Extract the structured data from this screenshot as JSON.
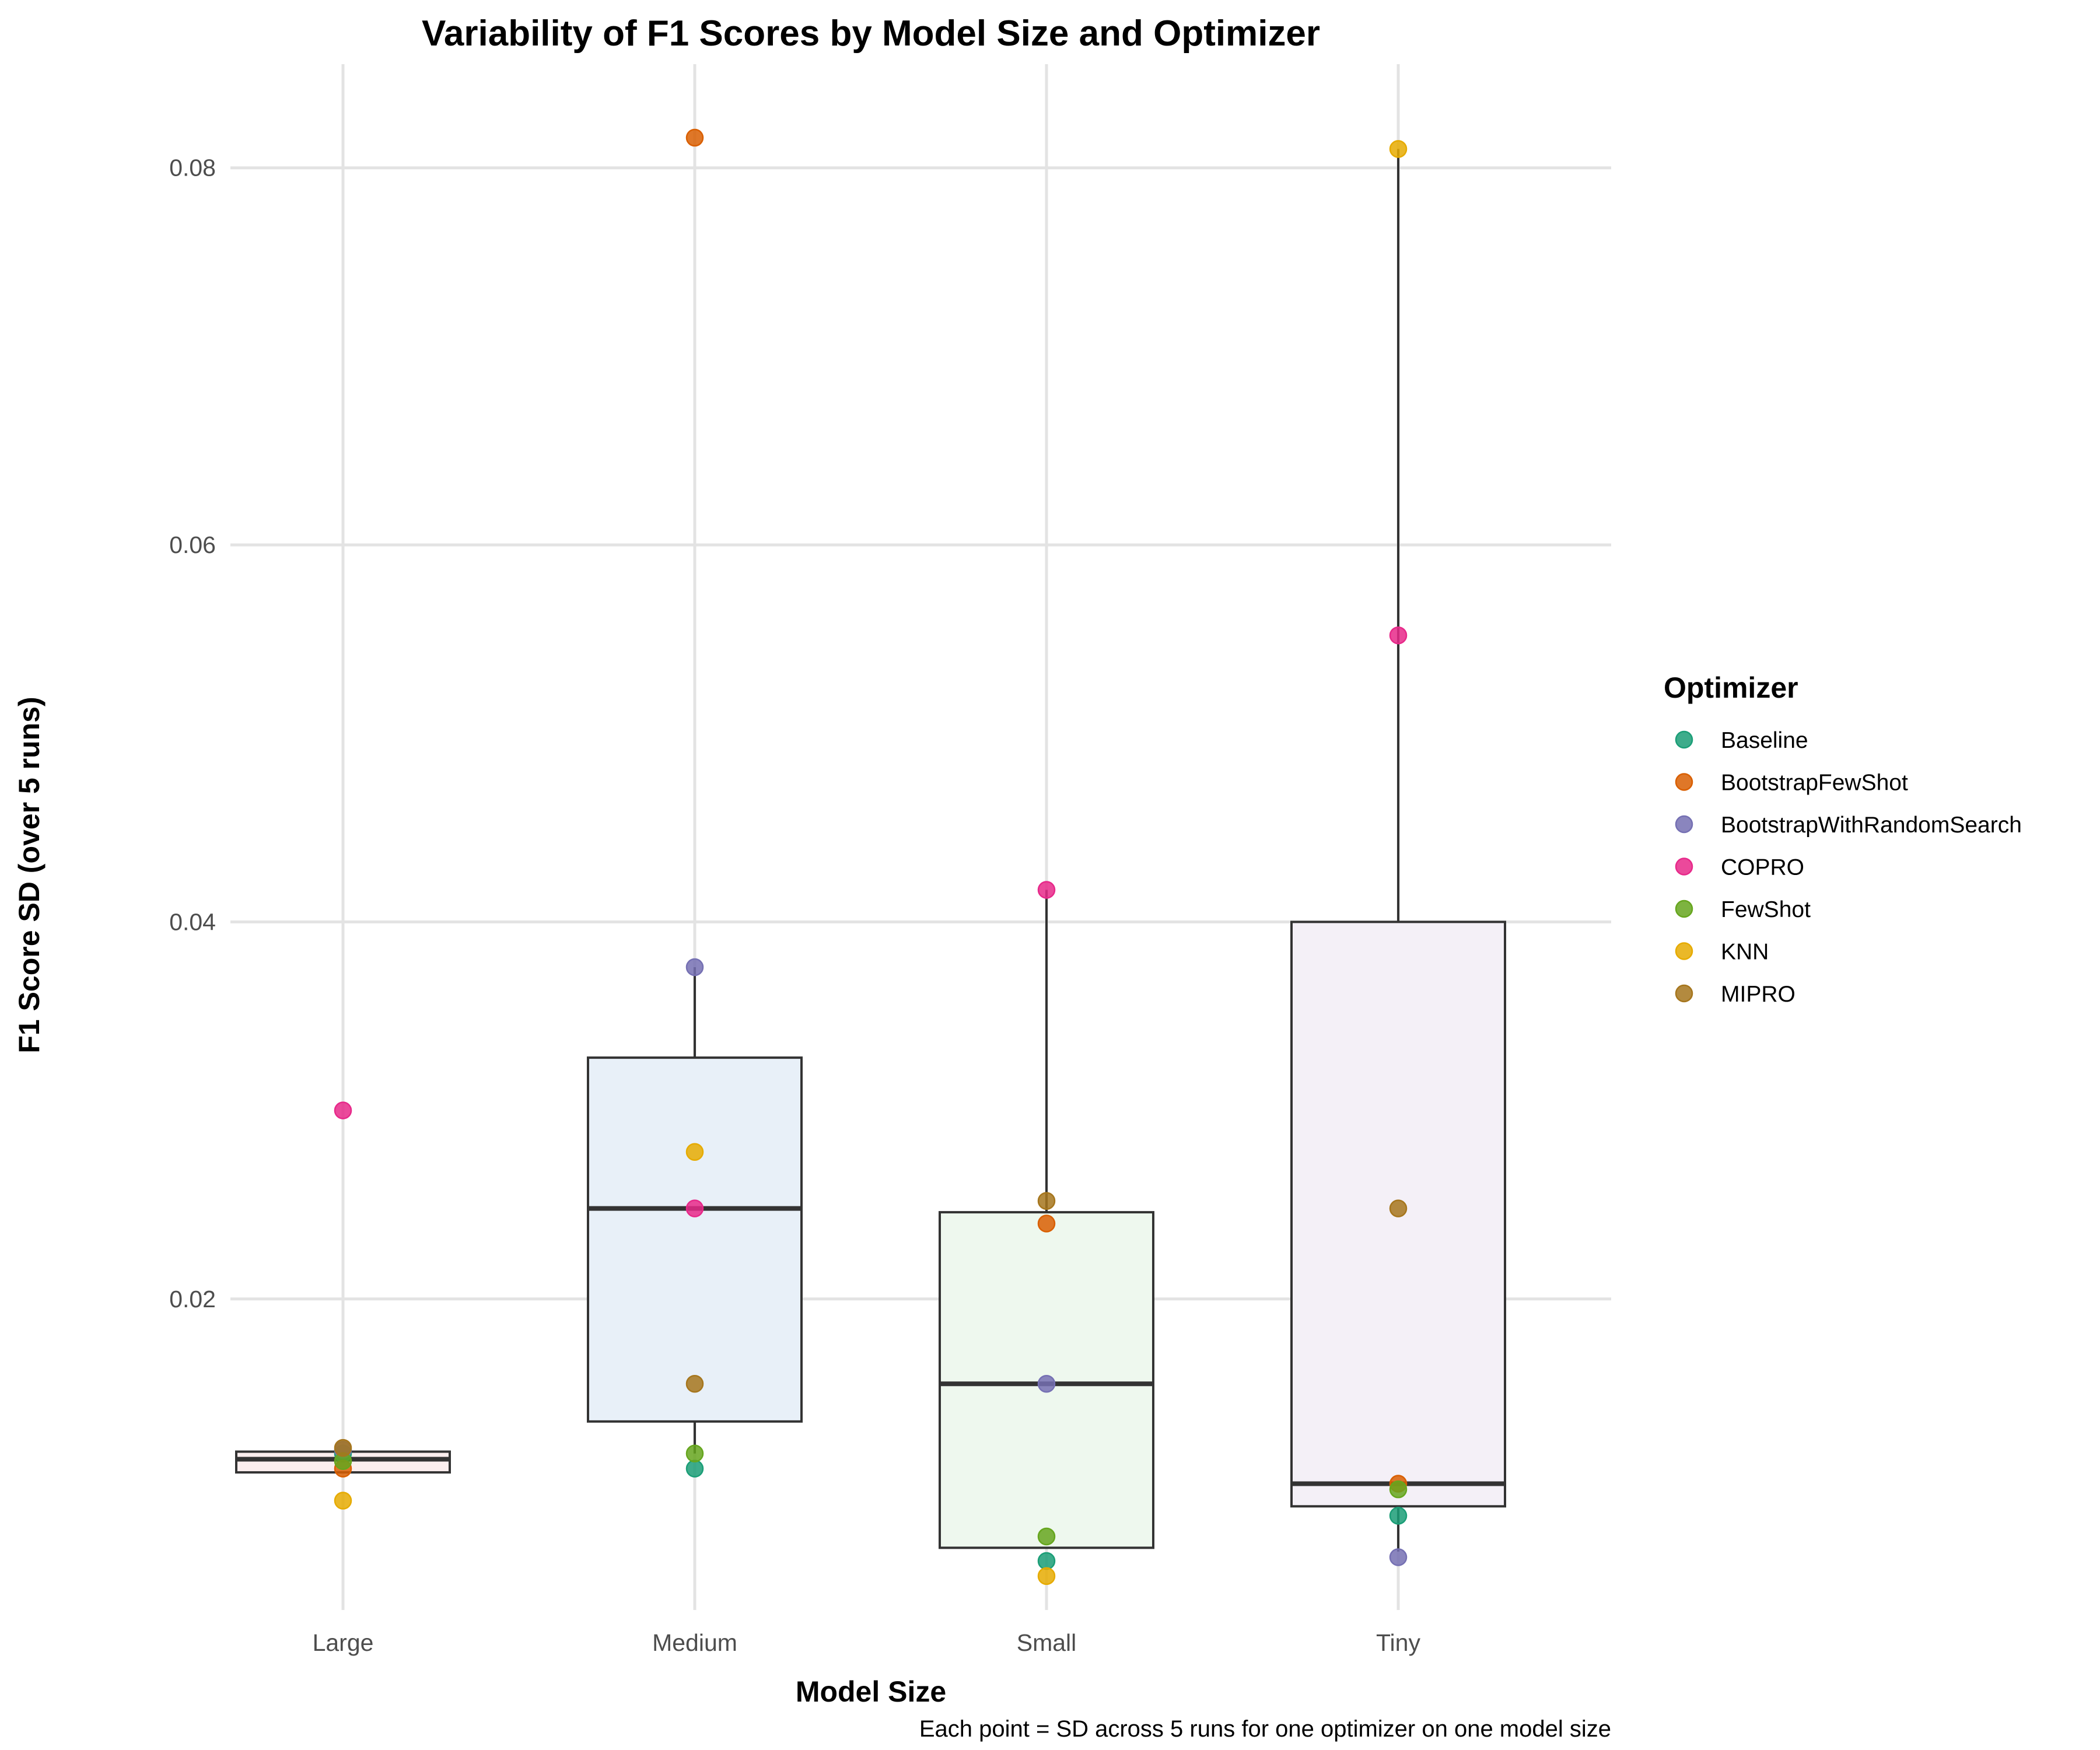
{
  "chart_data": {
    "type": "box",
    "title": "Variability of F1 Scores by Model Size and Optimizer",
    "xlabel": "Model Size",
    "ylabel": "F1 Score SD (over 5 runs)",
    "caption": "Each point = SD across 5 runs for one optimizer on one model size",
    "categories": [
      "Large",
      "Medium",
      "Small",
      "Tiny"
    ],
    "ylim": [
      0.0035,
      0.0855
    ],
    "yticks": [
      0.02,
      0.04,
      0.06,
      0.08
    ],
    "ytick_labels": [
      "0.02",
      "0.04",
      "0.06",
      "0.08"
    ],
    "grid": true,
    "legend": {
      "title": "Optimizer",
      "position": "right"
    },
    "box_fills": [
      "#fbeeee",
      "#e8f0f8",
      "#eef8ee",
      "#f4f0f7"
    ],
    "boxes": [
      {
        "category": "Large",
        "q1": 0.0108,
        "median": 0.0115,
        "q3": 0.0119,
        "whisker_low": 0.0108,
        "whisker_high": 0.0119
      },
      {
        "category": "Medium",
        "q1": 0.0135,
        "median": 0.0248,
        "q3": 0.0328,
        "whisker_low": 0.0118,
        "whisker_high": 0.0376
      },
      {
        "category": "Small",
        "q1": 0.0068,
        "median": 0.0155,
        "q3": 0.0246,
        "whisker_low": 0.0068,
        "whisker_high": 0.0417
      },
      {
        "category": "Tiny",
        "q1": 0.009,
        "median": 0.0102,
        "q3": 0.04,
        "whisker_low": 0.0066,
        "whisker_high": 0.081
      }
    ],
    "series": [
      {
        "name": "Baseline",
        "color": "#1b9e77",
        "values": [
          0.0118,
          0.011,
          0.0061,
          0.0085
        ]
      },
      {
        "name": "BootstrapFewShot",
        "color": "#d95f02",
        "values": [
          0.011,
          0.0816,
          0.024,
          0.0102
        ]
      },
      {
        "name": "BootstrapWithRandomSearch",
        "color": "#7570b3",
        "values": [
          0.012,
          0.0376,
          0.0155,
          0.0063
        ]
      },
      {
        "name": "COPRO",
        "color": "#e7298a",
        "values": [
          0.03,
          0.0248,
          0.0417,
          0.0552
        ]
      },
      {
        "name": "FewShot",
        "color": "#66a61e",
        "values": [
          0.0114,
          0.0118,
          0.0074,
          0.0099
        ]
      },
      {
        "name": "KNN",
        "color": "#e6ab02",
        "values": [
          0.0093,
          0.0278,
          0.0053,
          0.081
        ]
      },
      {
        "name": "MIPRO",
        "color": "#a6761d",
        "values": [
          0.0121,
          0.0155,
          0.0252,
          0.0248
        ]
      }
    ]
  }
}
